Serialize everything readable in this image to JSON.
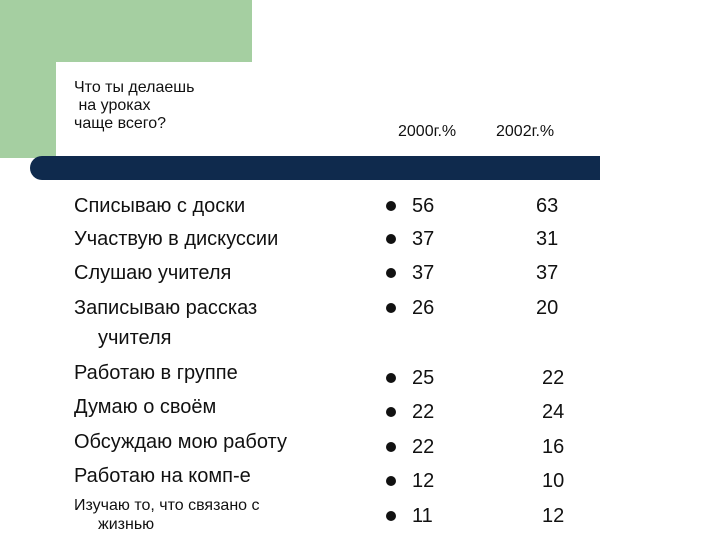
{
  "header": {
    "question": "Что ты делаешь\n на уроках\nчаще всего?",
    "col_2000": "2000г.%",
    "col_2002": "2002г.%"
  },
  "rows": [
    {
      "label": "Списываю с доски",
      "v2000": "56",
      "v2002": "63"
    },
    {
      "label": "Участвую в дискуссии",
      "v2000": "37",
      "v2002": "31"
    },
    {
      "label": "Слушаю учителя",
      "v2000": "37",
      "v2002": "37"
    },
    {
      "label": "Записываю рассказ",
      "label2": "учителя",
      "v2000": "26",
      "v2002": "20"
    },
    {
      "label": "Работаю в группе",
      "v2000": "25",
      "v2002": "22"
    },
    {
      "label": "Думаю о своём",
      "v2000": "22",
      "v2002": "24"
    },
    {
      "label": "Обсуждаю мою работу",
      "v2000": "22",
      "v2002": "16"
    },
    {
      "label": "Работаю на комп-е",
      "v2000": "12",
      "v2002": "10"
    },
    {
      "label": "Изучаю то, что связано с",
      "label2": "жизнью",
      "v2000": "11",
      "v2002": "12"
    }
  ],
  "colors": {
    "accent_green": "#a5cfa1",
    "bar_navy": "#0f2a4d"
  }
}
